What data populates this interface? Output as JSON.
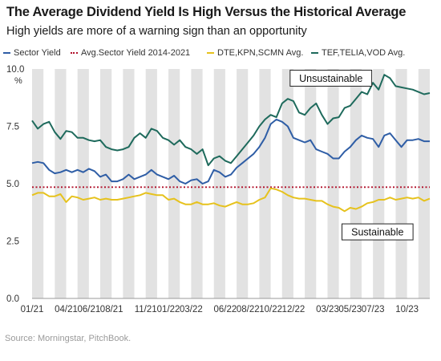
{
  "header": {
    "title": "The Average Dividend Yield Is High Versus the Historical Average",
    "subtitle": "High yields are more of a warning sign than an opportunity"
  },
  "source": "Source: Morningstar, PitchBook.",
  "colors": {
    "sector": "#2f5ea6",
    "avg": "#b0102a",
    "dte": "#e6c21d",
    "tef": "#1e6a5c",
    "band": "#e2e2e2"
  },
  "chart_data": {
    "type": "line",
    "ylim": [
      0,
      10
    ],
    "yticks": [
      "0.0",
      "2.5",
      "5.0",
      "7.5",
      "10.0"
    ],
    "yunit": "%",
    "xlim": [
      0,
      35
    ],
    "xticks": [
      {
        "x": 0,
        "label": "01/21"
      },
      {
        "x": 3,
        "label": "04/21"
      },
      {
        "x": 5,
        "label": "06/21"
      },
      {
        "x": 7,
        "label": "08/21"
      },
      {
        "x": 10,
        "label": "11/21"
      },
      {
        "x": 12,
        "label": "01/22"
      },
      {
        "x": 14,
        "label": "03/22"
      },
      {
        "x": 17,
        "label": "06/22"
      },
      {
        "x": 19,
        "label": "08/22"
      },
      {
        "x": 21,
        "label": "10/22"
      },
      {
        "x": 23,
        "label": "12/22"
      },
      {
        "x": 26,
        "label": "03/23"
      },
      {
        "x": 28,
        "label": "05/23"
      },
      {
        "x": 30,
        "label": "07/23"
      },
      {
        "x": 33,
        "label": "10/23"
      }
    ],
    "bands": [
      [
        0,
        1
      ],
      [
        2,
        3
      ],
      [
        4,
        5
      ],
      [
        6,
        7
      ],
      [
        8,
        9
      ],
      [
        10,
        11
      ],
      [
        12,
        13
      ],
      [
        14,
        15
      ],
      [
        16,
        17
      ],
      [
        18,
        19
      ],
      [
        20,
        21
      ],
      [
        22,
        23
      ],
      [
        24,
        25
      ],
      [
        26,
        27
      ],
      [
        28,
        29
      ],
      [
        30,
        31
      ],
      [
        32,
        33
      ],
      [
        34,
        35
      ]
    ],
    "series": [
      {
        "name": "Sector Yield",
        "key": "sector",
        "style": "solid",
        "points": [
          [
            0.0,
            5.9
          ],
          [
            0.5,
            5.95
          ],
          [
            1.0,
            5.9
          ],
          [
            1.5,
            5.6
          ],
          [
            2.0,
            5.45
          ],
          [
            2.5,
            5.5
          ],
          [
            3.0,
            5.6
          ],
          [
            3.5,
            5.5
          ],
          [
            4.0,
            5.6
          ],
          [
            4.5,
            5.5
          ],
          [
            5.0,
            5.65
          ],
          [
            5.5,
            5.55
          ],
          [
            6.0,
            5.3
          ],
          [
            6.5,
            5.4
          ],
          [
            7.0,
            5.1
          ],
          [
            7.5,
            5.1
          ],
          [
            8.0,
            5.2
          ],
          [
            8.5,
            5.4
          ],
          [
            9.0,
            5.2
          ],
          [
            9.5,
            5.3
          ],
          [
            10.0,
            5.4
          ],
          [
            10.5,
            5.6
          ],
          [
            11.0,
            5.4
          ],
          [
            11.5,
            5.3
          ],
          [
            12.0,
            5.2
          ],
          [
            12.5,
            5.35
          ],
          [
            13.0,
            5.1
          ],
          [
            13.5,
            5.0
          ],
          [
            14.0,
            5.15
          ],
          [
            14.5,
            5.2
          ],
          [
            15.0,
            5.0
          ],
          [
            15.5,
            5.1
          ],
          [
            16.0,
            5.6
          ],
          [
            16.5,
            5.5
          ],
          [
            17.0,
            5.3
          ],
          [
            17.5,
            5.4
          ],
          [
            18.0,
            5.7
          ],
          [
            18.5,
            5.9
          ],
          [
            19.0,
            6.1
          ],
          [
            19.5,
            6.3
          ],
          [
            20.0,
            6.6
          ],
          [
            20.5,
            7.0
          ],
          [
            21.0,
            7.6
          ],
          [
            21.5,
            7.8
          ],
          [
            22.0,
            7.7
          ],
          [
            22.5,
            7.5
          ],
          [
            23.0,
            7.0
          ],
          [
            23.5,
            6.9
          ],
          [
            24.0,
            6.8
          ],
          [
            24.5,
            6.9
          ],
          [
            25.0,
            6.5
          ],
          [
            25.5,
            6.4
          ],
          [
            26.0,
            6.3
          ],
          [
            26.5,
            6.1
          ],
          [
            27.0,
            6.1
          ],
          [
            27.5,
            6.4
          ],
          [
            28.0,
            6.6
          ],
          [
            28.5,
            6.9
          ],
          [
            29.0,
            7.1
          ],
          [
            29.5,
            7.0
          ],
          [
            30.0,
            6.95
          ],
          [
            30.5,
            6.6
          ],
          [
            31.0,
            7.1
          ],
          [
            31.5,
            7.2
          ],
          [
            32.0,
            6.9
          ],
          [
            32.5,
            6.6
          ],
          [
            33.0,
            6.9
          ],
          [
            33.5,
            6.9
          ],
          [
            34.0,
            6.95
          ],
          [
            34.5,
            6.85
          ],
          [
            35.0,
            6.85
          ]
        ]
      },
      {
        "name": "Avg.Sector Yield 2014-2021",
        "key": "avg",
        "style": "dotted",
        "points": [
          [
            0,
            4.85
          ],
          [
            35,
            4.85
          ]
        ]
      },
      {
        "name": "DTE,KPN,SCMN Avg.",
        "key": "dte",
        "style": "solid",
        "points": [
          [
            0.0,
            4.5
          ],
          [
            0.5,
            4.6
          ],
          [
            1.0,
            4.6
          ],
          [
            1.5,
            4.45
          ],
          [
            2.0,
            4.45
          ],
          [
            2.5,
            4.55
          ],
          [
            3.0,
            4.2
          ],
          [
            3.5,
            4.45
          ],
          [
            4.0,
            4.4
          ],
          [
            4.5,
            4.3
          ],
          [
            5.0,
            4.35
          ],
          [
            5.5,
            4.4
          ],
          [
            6.0,
            4.3
          ],
          [
            6.5,
            4.35
          ],
          [
            7.0,
            4.3
          ],
          [
            7.5,
            4.3
          ],
          [
            8.0,
            4.35
          ],
          [
            8.5,
            4.4
          ],
          [
            9.0,
            4.45
          ],
          [
            9.5,
            4.5
          ],
          [
            10.0,
            4.6
          ],
          [
            10.5,
            4.55
          ],
          [
            11.0,
            4.5
          ],
          [
            11.5,
            4.5
          ],
          [
            12.0,
            4.3
          ],
          [
            12.5,
            4.35
          ],
          [
            13.0,
            4.2
          ],
          [
            13.5,
            4.1
          ],
          [
            14.0,
            4.1
          ],
          [
            14.5,
            4.2
          ],
          [
            15.0,
            4.1
          ],
          [
            15.5,
            4.1
          ],
          [
            16.0,
            4.15
          ],
          [
            16.5,
            4.05
          ],
          [
            17.0,
            4.0
          ],
          [
            17.5,
            4.1
          ],
          [
            18.0,
            4.2
          ],
          [
            18.5,
            4.1
          ],
          [
            19.0,
            4.1
          ],
          [
            19.5,
            4.15
          ],
          [
            20.0,
            4.3
          ],
          [
            20.5,
            4.4
          ],
          [
            21.0,
            4.8
          ],
          [
            21.5,
            4.75
          ],
          [
            22.0,
            4.65
          ],
          [
            22.5,
            4.5
          ],
          [
            23.0,
            4.4
          ],
          [
            23.5,
            4.35
          ],
          [
            24.0,
            4.35
          ],
          [
            24.5,
            4.3
          ],
          [
            25.0,
            4.25
          ],
          [
            25.5,
            4.25
          ],
          [
            26.0,
            4.1
          ],
          [
            26.5,
            4.0
          ],
          [
            27.0,
            3.95
          ],
          [
            27.5,
            3.8
          ],
          [
            28.0,
            3.95
          ],
          [
            28.5,
            3.9
          ],
          [
            29.0,
            4.0
          ],
          [
            29.5,
            4.15
          ],
          [
            30.0,
            4.2
          ],
          [
            30.5,
            4.3
          ],
          [
            31.0,
            4.3
          ],
          [
            31.5,
            4.4
          ],
          [
            32.0,
            4.3
          ],
          [
            32.5,
            4.35
          ],
          [
            33.0,
            4.4
          ],
          [
            33.5,
            4.35
          ],
          [
            34.0,
            4.4
          ],
          [
            34.5,
            4.25
          ],
          [
            35.0,
            4.35
          ]
        ]
      },
      {
        "name": "TEF,TELIA,VOD Avg.",
        "key": "tef",
        "style": "solid",
        "points": [
          [
            0.0,
            7.75
          ],
          [
            0.5,
            7.4
          ],
          [
            1.0,
            7.6
          ],
          [
            1.5,
            7.7
          ],
          [
            2.0,
            7.25
          ],
          [
            2.5,
            6.95
          ],
          [
            3.0,
            7.3
          ],
          [
            3.5,
            7.25
          ],
          [
            4.0,
            7.0
          ],
          [
            4.5,
            7.0
          ],
          [
            5.0,
            6.9
          ],
          [
            5.5,
            6.85
          ],
          [
            6.0,
            6.9
          ],
          [
            6.5,
            6.6
          ],
          [
            7.0,
            6.5
          ],
          [
            7.5,
            6.45
          ],
          [
            8.0,
            6.5
          ],
          [
            8.5,
            6.6
          ],
          [
            9.0,
            7.0
          ],
          [
            9.5,
            7.2
          ],
          [
            10.0,
            7.0
          ],
          [
            10.5,
            7.4
          ],
          [
            11.0,
            7.3
          ],
          [
            11.5,
            7.0
          ],
          [
            12.0,
            6.9
          ],
          [
            12.5,
            6.7
          ],
          [
            13.0,
            6.9
          ],
          [
            13.5,
            6.6
          ],
          [
            14.0,
            6.5
          ],
          [
            14.5,
            6.3
          ],
          [
            15.0,
            6.5
          ],
          [
            15.5,
            5.8
          ],
          [
            16.0,
            6.1
          ],
          [
            16.5,
            6.2
          ],
          [
            17.0,
            6.0
          ],
          [
            17.5,
            5.9
          ],
          [
            18.0,
            6.2
          ],
          [
            18.5,
            6.5
          ],
          [
            19.0,
            6.8
          ],
          [
            19.5,
            7.1
          ],
          [
            20.0,
            7.5
          ],
          [
            20.5,
            7.8
          ],
          [
            21.0,
            8.0
          ],
          [
            21.5,
            7.9
          ],
          [
            22.0,
            8.5
          ],
          [
            22.5,
            8.7
          ],
          [
            23.0,
            8.6
          ],
          [
            23.5,
            8.1
          ],
          [
            24.0,
            8.0
          ],
          [
            24.5,
            8.3
          ],
          [
            25.0,
            8.5
          ],
          [
            25.5,
            8.0
          ],
          [
            26.0,
            7.6
          ],
          [
            26.5,
            7.85
          ],
          [
            27.0,
            7.9
          ],
          [
            27.5,
            8.3
          ],
          [
            28.0,
            8.4
          ],
          [
            28.5,
            8.7
          ],
          [
            29.0,
            9.0
          ],
          [
            29.5,
            8.9
          ],
          [
            30.0,
            9.4
          ],
          [
            30.5,
            9.1
          ],
          [
            31.0,
            9.75
          ],
          [
            31.5,
            9.6
          ],
          [
            32.0,
            9.25
          ],
          [
            32.5,
            9.2
          ],
          [
            33.0,
            9.15
          ],
          [
            33.5,
            9.1
          ],
          [
            34.0,
            9.0
          ],
          [
            34.5,
            8.9
          ],
          [
            35.0,
            8.95
          ]
        ]
      }
    ],
    "annotations": [
      {
        "text": "Unsustainable",
        "x": 26.3,
        "y": 9.6
      },
      {
        "text": "Sustainable",
        "x": 30.4,
        "y": 2.9
      }
    ]
  }
}
